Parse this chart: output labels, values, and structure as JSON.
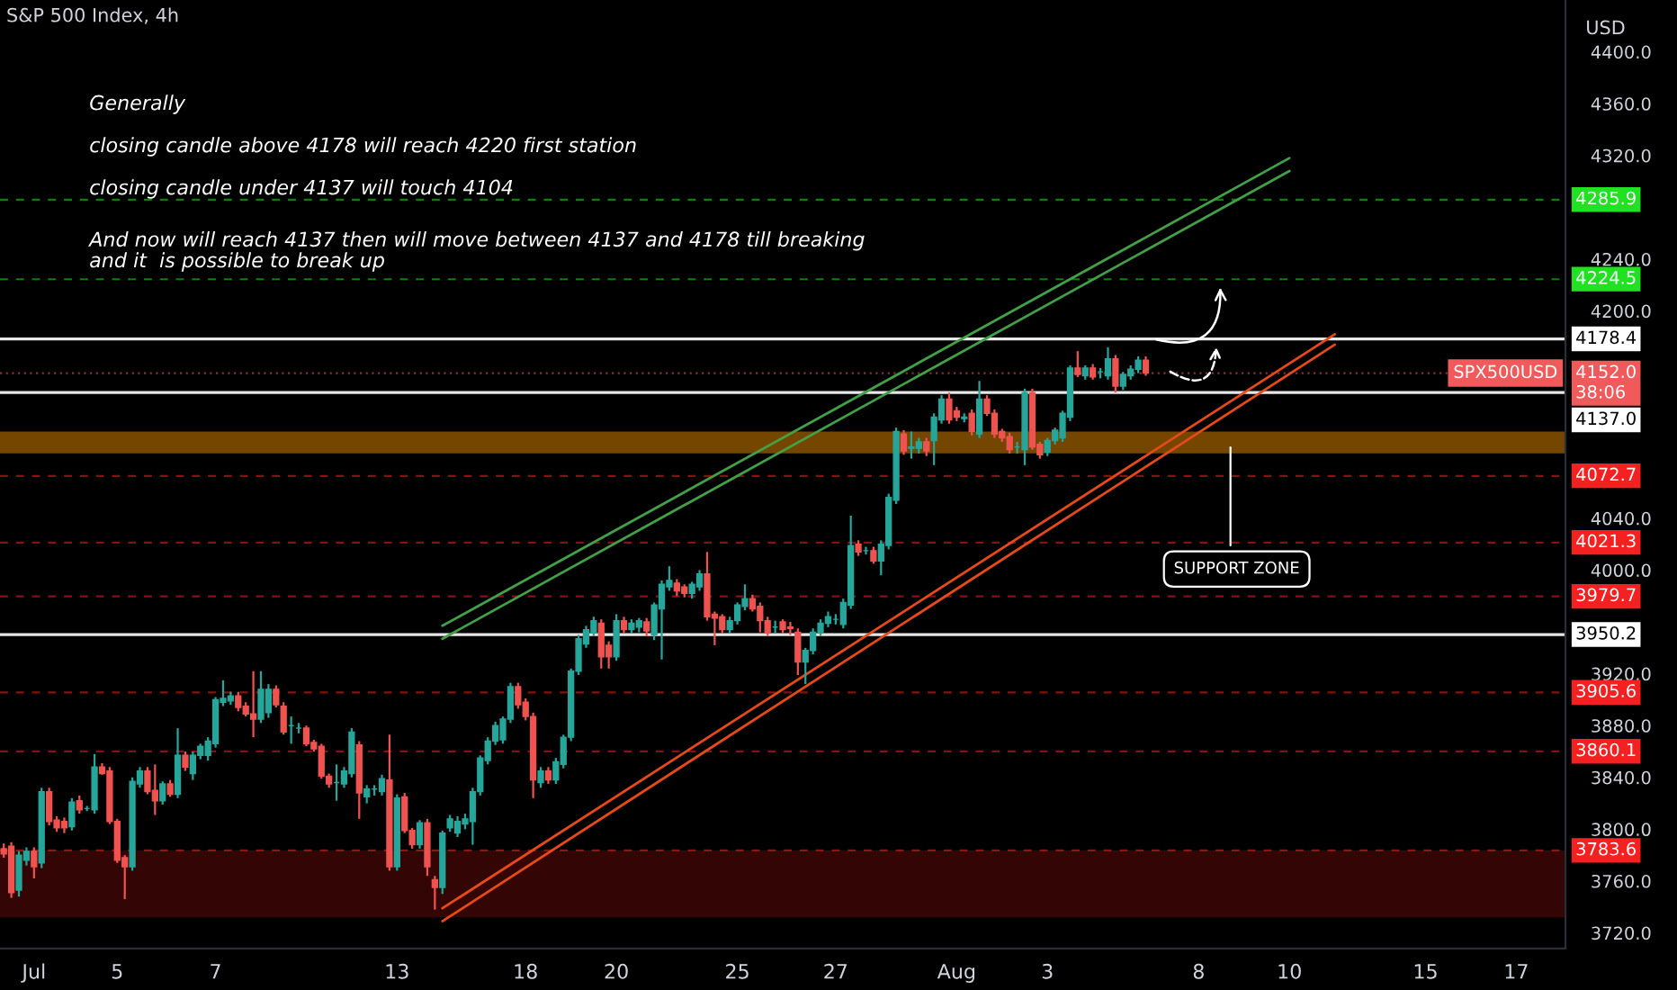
{
  "chart_data": {
    "type": "candlestick",
    "title": "S&P 500 Index, 4h",
    "ylabel": "USD",
    "annotations": [
      "Generally",
      "closing candle above 4178 will reach 4220 first station",
      "closing candle under 4137 will touch 4104",
      "And now will reach 4137 then will move between 4137 and 4178 till breaking\nand it  is possible to break up",
      {
        "text": "SPX500USD",
        "y": 4152.0
      }
    ],
    "categories": [
      null,
      null,
      null,
      null,
      "Jul",
      null,
      null,
      null,
      null,
      null,
      null,
      null,
      null,
      null,
      null,
      "5",
      null,
      null,
      null,
      null,
      null,
      null,
      null,
      null,
      null,
      null,
      null,
      null,
      "7",
      null,
      null,
      null,
      null,
      null,
      null,
      null,
      null,
      null,
      null,
      null,
      null,
      null,
      null,
      null,
      null,
      null,
      null,
      null,
      null,
      null,
      null,
      null,
      "13",
      null,
      null,
      null,
      null,
      null,
      null,
      null,
      null,
      null,
      null,
      null,
      null,
      null,
      null,
      null,
      null,
      "18",
      null,
      null,
      null,
      null,
      null,
      null,
      null,
      null,
      null,
      null,
      null,
      "20",
      null,
      null,
      null,
      null,
      null,
      null,
      null,
      null,
      null,
      null,
      null,
      null,
      null,
      null,
      null,
      "25",
      null,
      null,
      null,
      null,
      null,
      null,
      null,
      null,
      null,
      null,
      null,
      null,
      "27",
      null,
      null,
      null,
      null,
      null,
      null,
      null,
      null,
      null,
      null,
      null,
      null,
      null,
      null,
      null,
      "Aug",
      null,
      null,
      null,
      null,
      null,
      null,
      null,
      null,
      null,
      null,
      null,
      "3",
      null,
      null,
      null,
      null,
      null,
      null,
      null,
      null,
      null,
      null,
      null,
      null,
      null,
      null,
      null,
      null,
      null,
      null,
      null,
      "8",
      null,
      null,
      null,
      null,
      null,
      null,
      null,
      null,
      null,
      null,
      null,
      "10",
      null,
      null,
      null,
      null,
      null,
      null,
      null,
      null,
      null,
      null,
      null,
      null,
      null,
      null,
      null,
      null,
      null,
      "15",
      null,
      null,
      null,
      null,
      null,
      null,
      null,
      null,
      null,
      null,
      null,
      "17",
      null,
      null,
      null,
      null,
      null,
      null
    ],
    "ohlc": [
      [
        3785,
        3789,
        3778,
        3781
      ],
      [
        3787,
        3790,
        3747,
        3751
      ],
      [
        3753,
        3783,
        3748,
        3780
      ],
      [
        3776,
        3786,
        3772,
        3783
      ],
      [
        3783,
        3786,
        3762,
        3771
      ],
      [
        3774,
        3832,
        3770,
        3829
      ],
      [
        3829,
        3832,
        3803,
        3806
      ],
      [
        3807,
        3810,
        3798,
        3801
      ],
      [
        3806,
        3809,
        3797,
        3801
      ],
      [
        3802,
        3824,
        3799,
        3821
      ],
      [
        3822,
        3826,
        3812,
        3815
      ],
      [
        3816,
        3818,
        3814,
        3816
      ],
      [
        3815,
        3858,
        3812,
        3848
      ],
      [
        3848,
        3851,
        3842,
        3843
      ],
      [
        3845,
        3848,
        3804,
        3806
      ],
      [
        3806,
        3808,
        3774,
        3776
      ],
      [
        3778,
        3780,
        3746,
        3771
      ],
      [
        3771,
        3840,
        3768,
        3837
      ],
      [
        3835,
        3848,
        3832,
        3845
      ],
      [
        3845,
        3848,
        3827,
        3829
      ],
      [
        3830,
        3850,
        3811,
        3822
      ],
      [
        3822,
        3837,
        3819,
        3835
      ],
      [
        3835,
        3838,
        3825,
        3827
      ],
      [
        3827,
        3878,
        3824,
        3857
      ],
      [
        3857,
        3860,
        3845,
        3848
      ],
      [
        3843,
        3860,
        3838,
        3857
      ],
      [
        3857,
        3866,
        3854,
        3864
      ],
      [
        3857,
        3871,
        3853,
        3868
      ],
      [
        3866,
        3902,
        3863,
        3900
      ],
      [
        3898,
        3915,
        3895,
        3901
      ],
      [
        3899,
        3906,
        3896,
        3903
      ],
      [
        3903,
        3906,
        3891,
        3894
      ],
      [
        3895,
        3898,
        3887,
        3889
      ],
      [
        3889,
        3922,
        3871,
        3885
      ],
      [
        3885,
        3922,
        3882,
        3908
      ],
      [
        3890,
        3912,
        3886,
        3908
      ],
      [
        3908,
        3911,
        3894,
        3896
      ],
      [
        3895,
        3898,
        3873,
        3875
      ],
      [
        3880,
        3887,
        3866,
        3880
      ],
      [
        3878,
        3882,
        3874,
        3878
      ],
      [
        3878,
        3880,
        3864,
        3866
      ],
      [
        3867,
        3869,
        3860,
        3862
      ],
      [
        3864,
        3866,
        3839,
        3841
      ],
      [
        3841,
        3843,
        3832,
        3835
      ],
      [
        3836,
        3850,
        3822,
        3836
      ],
      [
        3835,
        3848,
        3832,
        3845
      ],
      [
        3843,
        3878,
        3840,
        3875
      ],
      [
        3865,
        3868,
        3808,
        3828
      ],
      [
        3825,
        3834,
        3820,
        3831
      ],
      [
        3831,
        3834,
        3826,
        3831
      ],
      [
        3829,
        3842,
        3826,
        3839
      ],
      [
        3838,
        3873,
        3768,
        3771
      ],
      [
        3771,
        3827,
        3768,
        3824
      ],
      [
        3825,
        3828,
        3797,
        3799
      ],
      [
        3799,
        3801,
        3785,
        3788
      ],
      [
        3788,
        3807,
        3785,
        3805
      ],
      [
        3805,
        3808,
        3764,
        3771
      ],
      [
        3761,
        3764,
        3738,
        3755
      ],
      [
        3755,
        3799,
        3750,
        3797
      ],
      [
        3801,
        3811,
        3798,
        3808
      ],
      [
        3797,
        3810,
        3794,
        3806
      ],
      [
        3804,
        3812,
        3800,
        3808
      ],
      [
        3806,
        3832,
        3788,
        3829
      ],
      [
        3829,
        3857,
        3826,
        3855
      ],
      [
        3853,
        3871,
        3850,
        3868
      ],
      [
        3868,
        3883,
        3865,
        3880
      ],
      [
        3869,
        3887,
        3866,
        3885
      ],
      [
        3885,
        3913,
        3882,
        3910
      ],
      [
        3910,
        3913,
        3893,
        3896
      ],
      [
        3898,
        3901,
        3884,
        3887
      ],
      [
        3887,
        3890,
        3824,
        3838
      ],
      [
        3836,
        3848,
        3832,
        3845
      ],
      [
        3845,
        3848,
        3835,
        3838
      ],
      [
        3838,
        3855,
        3835,
        3852
      ],
      [
        3850,
        3873,
        3847,
        3871
      ],
      [
        3871,
        3924,
        3868,
        3922
      ],
      [
        3922,
        3950,
        3919,
        3947
      ],
      [
        3943,
        3957,
        3940,
        3954
      ],
      [
        3952,
        3964,
        3949,
        3961
      ],
      [
        3959,
        3962,
        3924,
        3933
      ],
      [
        3942,
        3945,
        3924,
        3933
      ],
      [
        3933,
        3966,
        3930,
        3961
      ],
      [
        3961,
        3964,
        3951,
        3954
      ],
      [
        3954,
        3962,
        3951,
        3959
      ],
      [
        3956,
        3963,
        3952,
        3961
      ],
      [
        3960,
        3963,
        3949,
        3953
      ],
      [
        3950,
        3975,
        3946,
        3973
      ],
      [
        3970,
        3992,
        3931,
        3989
      ],
      [
        3987,
        4003,
        3984,
        3992
      ],
      [
        3990,
        3993,
        3980,
        3984
      ],
      [
        3987,
        3989,
        3979,
        3982
      ],
      [
        3982,
        3991,
        3978,
        3989
      ],
      [
        3987,
        4000,
        3984,
        3997
      ],
      [
        3997,
        4014,
        3961,
        3964
      ],
      [
        3966,
        3968,
        3942,
        3963
      ],
      [
        3964,
        3966,
        3951,
        3954
      ],
      [
        3954,
        3964,
        3951,
        3961
      ],
      [
        3961,
        3975,
        3958,
        3973
      ],
      [
        3972,
        3989,
        3969,
        3978
      ],
      [
        3978,
        3981,
        3968,
        3970
      ],
      [
        3972,
        3975,
        3952,
        3961
      ],
      [
        3961,
        3964,
        3949,
        3952
      ],
      [
        3956,
        3961,
        3951,
        3956
      ],
      [
        3960,
        3962,
        3951,
        3954
      ],
      [
        3956,
        3960,
        3950,
        3955
      ],
      [
        3952,
        3955,
        3919,
        3929
      ],
      [
        3929,
        3940,
        3912,
        3938
      ],
      [
        3938,
        3955,
        3935,
        3952
      ],
      [
        3952,
        3962,
        3949,
        3959
      ],
      [
        3959,
        3968,
        3956,
        3964
      ],
      [
        3962,
        3966,
        3958,
        3962
      ],
      [
        3958,
        3978,
        3955,
        3975
      ],
      [
        3973,
        4042,
        3970,
        4019
      ],
      [
        4020,
        4023,
        4011,
        4014
      ],
      [
        4015,
        4018,
        4012,
        4015
      ],
      [
        4015,
        4018,
        4005,
        4007
      ],
      [
        4007,
        4023,
        3996,
        4020
      ],
      [
        4019,
        4059,
        4016,
        4056
      ],
      [
        4054,
        4110,
        4051,
        4107
      ],
      [
        4105,
        4108,
        4089,
        4092
      ],
      [
        4094,
        4107,
        4086,
        4095
      ],
      [
        4094,
        4102,
        4090,
        4099
      ],
      [
        4099,
        4102,
        4088,
        4092
      ],
      [
        4100,
        4121,
        4081,
        4118
      ],
      [
        4116,
        4135,
        4113,
        4132
      ],
      [
        4132,
        4137,
        4113,
        4116
      ],
      [
        4123,
        4126,
        4115,
        4118
      ],
      [
        4117,
        4121,
        4114,
        4118
      ],
      [
        4121,
        4124,
        4104,
        4107
      ],
      [
        4105,
        4146,
        4102,
        4132
      ],
      [
        4132,
        4135,
        4119,
        4121
      ],
      [
        4121,
        4124,
        4102,
        4105
      ],
      [
        4107,
        4109,
        4099,
        4102
      ],
      [
        4103,
        4106,
        4090,
        4093
      ],
      [
        4095,
        4099,
        4090,
        4095
      ],
      [
        4093,
        4140,
        4081,
        4137
      ],
      [
        4137,
        4140,
        4093,
        4095
      ],
      [
        4097,
        4099,
        4086,
        4089
      ],
      [
        4091,
        4102,
        4088,
        4100
      ],
      [
        4100,
        4110,
        4097,
        4108
      ],
      [
        4102,
        4123,
        4099,
        4121
      ],
      [
        4118,
        4158,
        4115,
        4156
      ],
      [
        4156,
        4169,
        4149,
        4151
      ],
      [
        4150,
        4158,
        4147,
        4156
      ],
      [
        4156,
        4159,
        4147,
        4149
      ],
      [
        4153,
        4156,
        4148,
        4153
      ],
      [
        4150,
        4172,
        4147,
        4163
      ],
      [
        4163,
        4166,
        4137,
        4142
      ],
      [
        4142,
        4153,
        4139,
        4151
      ],
      [
        4150,
        4158,
        4147,
        4155
      ],
      [
        4155,
        4165,
        4152,
        4162
      ],
      [
        4162,
        4165,
        4150,
        4152
      ],
      null,
      null,
      null,
      null,
      null,
      null,
      null,
      null,
      null,
      null,
      null,
      null,
      null,
      null,
      null,
      null,
      null,
      null,
      null,
      null,
      null,
      null,
      null,
      null,
      null,
      null,
      null,
      null,
      null,
      null,
      null,
      null,
      null,
      null,
      null,
      null,
      null,
      null,
      null,
      null,
      null,
      null,
      null,
      null,
      null,
      null,
      null,
      null,
      null,
      null,
      null,
      null,
      null,
      null,
      null
    ],
    "series": [
      {
        "type": "line",
        "color": "#43a047",
        "values": [
          null,
          null,
          null,
          null,
          null,
          null,
          null,
          null,
          null,
          null,
          null,
          null,
          null,
          null,
          null,
          null,
          null,
          null,
          null,
          null,
          null,
          null,
          null,
          null,
          null,
          null,
          null,
          null,
          null,
          null,
          null,
          null,
          null,
          null,
          null,
          null,
          null,
          null,
          null,
          null,
          null,
          null,
          null,
          null,
          null,
          null,
          null,
          null,
          null,
          null,
          null,
          null,
          null,
          null,
          null,
          null,
          null,
          null,
          3957,
          null,
          null,
          null,
          null,
          null,
          null,
          null,
          null,
          null,
          null,
          null,
          null,
          null,
          null,
          null,
          null,
          null,
          null,
          null,
          null,
          null,
          null,
          null,
          null,
          null,
          null,
          null,
          null,
          null,
          null,
          null,
          null,
          null,
          null,
          null,
          null,
          null,
          null,
          null,
          null,
          null,
          null,
          null,
          null,
          null,
          null,
          null,
          null,
          null,
          null,
          null,
          null,
          null,
          null,
          null,
          null,
          null,
          null,
          null,
          null,
          null,
          null,
          null,
          null,
          null,
          null,
          null,
          null,
          null,
          null,
          null,
          null,
          null,
          null,
          null,
          null,
          null,
          null,
          null,
          null,
          null,
          null,
          null,
          null,
          null,
          null,
          null,
          null,
          null,
          null,
          null,
          null,
          null,
          null,
          null,
          null,
          null,
          null,
          null,
          null,
          null,
          null,
          null,
          null,
          null,
          null,
          null,
          null,
          null,
          null,
          null,
          4318,
          null,
          null,
          null,
          null,
          null,
          null,
          null,
          null,
          null,
          null,
          null,
          null,
          null,
          null,
          null,
          null,
          null,
          null,
          null,
          null,
          null,
          null,
          null,
          null,
          null,
          null,
          null,
          null,
          null,
          null,
          null,
          null,
          null,
          null,
          null,
          null
        ]
      },
      {
        "type": "line",
        "color": "#43a047",
        "values": [
          null,
          null,
          null,
          null,
          null,
          null,
          null,
          null,
          null,
          null,
          null,
          null,
          null,
          null,
          null,
          null,
          null,
          null,
          null,
          null,
          null,
          null,
          null,
          null,
          null,
          null,
          null,
          null,
          null,
          null,
          null,
          null,
          null,
          null,
          null,
          null,
          null,
          null,
          null,
          null,
          null,
          null,
          null,
          null,
          null,
          null,
          null,
          null,
          null,
          null,
          null,
          null,
          null,
          null,
          null,
          null,
          null,
          null,
          3947,
          null,
          null,
          null,
          null,
          null,
          null,
          null,
          null,
          null,
          null,
          null,
          null,
          null,
          null,
          null,
          null,
          null,
          null,
          null,
          null,
          null,
          null,
          null,
          null,
          null,
          null,
          null,
          null,
          null,
          null,
          null,
          null,
          null,
          null,
          null,
          null,
          null,
          null,
          null,
          null,
          null,
          null,
          null,
          null,
          null,
          null,
          null,
          null,
          null,
          null,
          null,
          null,
          null,
          null,
          null,
          null,
          null,
          null,
          null,
          null,
          null,
          null,
          null,
          null,
          null,
          null,
          null,
          null,
          null,
          null,
          null,
          null,
          null,
          null,
          null,
          null,
          null,
          null,
          null,
          null,
          null,
          null,
          null,
          null,
          null,
          null,
          null,
          null,
          null,
          null,
          null,
          null,
          null,
          null,
          null,
          null,
          null,
          null,
          null,
          null,
          null,
          null,
          null,
          null,
          null,
          null,
          null,
          null,
          null,
          null,
          null,
          4308,
          null,
          null,
          null,
          null,
          null,
          null,
          null,
          null,
          null,
          null,
          null,
          null,
          null,
          null,
          null,
          null,
          null,
          null,
          null,
          null,
          null,
          null,
          null,
          null,
          null,
          null,
          null,
          null,
          null,
          null,
          null,
          null,
          null,
          null,
          null,
          null
        ]
      },
      {
        "type": "line",
        "color": "#e64a19",
        "values": [
          null,
          null,
          null,
          null,
          null,
          null,
          null,
          null,
          null,
          null,
          null,
          null,
          null,
          null,
          null,
          null,
          null,
          null,
          null,
          null,
          null,
          null,
          null,
          null,
          null,
          null,
          null,
          null,
          null,
          null,
          null,
          null,
          null,
          null,
          null,
          null,
          null,
          null,
          null,
          null,
          null,
          null,
          null,
          null,
          null,
          null,
          null,
          null,
          null,
          null,
          null,
          null,
          null,
          null,
          null,
          null,
          null,
          null,
          3739,
          null,
          null,
          null,
          null,
          null,
          null,
          null,
          null,
          null,
          null,
          null,
          null,
          null,
          null,
          null,
          null,
          null,
          null,
          null,
          null,
          null,
          null,
          null,
          null,
          null,
          null,
          null,
          null,
          null,
          null,
          null,
          null,
          null,
          null,
          null,
          null,
          null,
          null,
          null,
          null,
          null,
          null,
          null,
          null,
          null,
          null,
          null,
          null,
          null,
          null,
          null,
          null,
          null,
          null,
          null,
          null,
          null,
          null,
          null,
          null,
          null,
          null,
          null,
          null,
          null,
          null,
          null,
          null,
          null,
          null,
          null,
          null,
          null,
          null,
          null,
          null,
          null,
          null,
          null,
          null,
          null,
          null,
          null,
          null,
          null,
          null,
          null,
          null,
          null,
          null,
          null,
          null,
          null,
          null,
          null,
          null,
          null,
          null,
          null,
          null,
          null,
          null,
          null,
          null,
          null,
          null,
          null,
          null,
          null,
          null,
          null,
          null,
          null,
          null,
          null,
          null,
          null,
          4182,
          null,
          null,
          null,
          null,
          null,
          null,
          null,
          null,
          null,
          null,
          null,
          null,
          null,
          null,
          null,
          null,
          null,
          null,
          null,
          null,
          null,
          null,
          null,
          null,
          null,
          null,
          null,
          null,
          null,
          null
        ]
      },
      {
        "type": "line",
        "color": "#e64a19",
        "values": [
          null,
          null,
          null,
          null,
          null,
          null,
          null,
          null,
          null,
          null,
          null,
          null,
          null,
          null,
          null,
          null,
          null,
          null,
          null,
          null,
          null,
          null,
          null,
          null,
          null,
          null,
          null,
          null,
          null,
          null,
          null,
          null,
          null,
          null,
          null,
          null,
          null,
          null,
          null,
          null,
          null,
          null,
          null,
          null,
          null,
          null,
          null,
          null,
          null,
          null,
          null,
          null,
          null,
          null,
          null,
          null,
          null,
          null,
          3729,
          null,
          null,
          null,
          null,
          null,
          null,
          null,
          null,
          null,
          null,
          null,
          null,
          null,
          null,
          null,
          null,
          null,
          null,
          null,
          null,
          null,
          null,
          null,
          null,
          null,
          null,
          null,
          null,
          null,
          null,
          null,
          null,
          null,
          null,
          null,
          null,
          null,
          null,
          null,
          null,
          null,
          null,
          null,
          null,
          null,
          null,
          null,
          null,
          null,
          null,
          null,
          null,
          null,
          null,
          null,
          null,
          null,
          null,
          null,
          null,
          null,
          null,
          null,
          null,
          null,
          null,
          null,
          null,
          null,
          null,
          null,
          null,
          null,
          null,
          null,
          null,
          null,
          null,
          null,
          null,
          null,
          null,
          null,
          null,
          null,
          null,
          null,
          null,
          null,
          null,
          null,
          null,
          null,
          null,
          null,
          null,
          null,
          null,
          null,
          null,
          null,
          null,
          null,
          null,
          null,
          null,
          null,
          null,
          null,
          null,
          null,
          null,
          null,
          null,
          null,
          null,
          null,
          4174,
          null,
          null,
          null,
          null,
          null,
          null,
          null,
          null,
          null,
          null,
          null,
          null,
          null,
          null,
          null,
          null,
          null,
          null,
          null,
          null,
          null,
          null,
          null,
          null,
          null,
          null,
          null,
          null,
          null,
          null
        ]
      }
    ],
    "ref_lines": [
      {
        "axis": "y",
        "value": 4285.9,
        "label": "4285.9",
        "color": "#22e022",
        "line_style": "dashed"
      },
      {
        "axis": "y",
        "value": 4224.5,
        "label": "4224.5",
        "color": "#22e022",
        "line_style": "dashed"
      },
      {
        "axis": "y",
        "value": 4178.4,
        "label": "4178.4",
        "color": "#ffffff",
        "line_style": "solid"
      },
      {
        "axis": "y",
        "value": 4152.0,
        "label": "4152.0\n38:06",
        "color": "#f05a5a",
        "line_style": "dotted"
      },
      {
        "axis": "y",
        "value": 4137.0,
        "label": "4137.0",
        "color": "#ffffff",
        "line_style": "solid"
      },
      {
        "axis": "y",
        "value": 4072.7,
        "label": "4072.7",
        "color": "#f52020",
        "line_style": "dashed"
      },
      {
        "axis": "y",
        "value": 4021.3,
        "label": "4021.3",
        "color": "#f52020",
        "line_style": "dashed"
      },
      {
        "axis": "y",
        "value": 3979.7,
        "label": "3979.7",
        "color": "#f52020",
        "line_style": "dashed"
      },
      {
        "axis": "y",
        "value": 3950.2,
        "label": "3950.2",
        "color": "#ffffff",
        "line_style": "solid"
      },
      {
        "axis": "y",
        "value": 3905.6,
        "label": "3905.6",
        "color": "#f52020",
        "line_style": "dashed"
      },
      {
        "axis": "y",
        "value": 3860.1,
        "label": "3860.1",
        "color": "#f52020",
        "line_style": "dashed"
      },
      {
        "axis": "y",
        "value": 3783.6,
        "label": "3783.6",
        "color": "#f52020",
        "line_style": "dashed"
      }
    ],
    "bands": [
      {
        "axis": "y",
        "from": 3732,
        "to": 3783.6,
        "color": "#3d0606"
      },
      {
        "axis": "y",
        "from": 4090,
        "to": 4107,
        "color": "#8a5200",
        "label": "SUPPORT ZONE"
      }
    ],
    "ylim": [
      3708,
      4440
    ],
    "yticks": [
      {
        "value": 3720,
        "label": "3720.0"
      },
      {
        "value": 3760,
        "label": "3760.0"
      },
      {
        "value": 3800,
        "label": "3800.0"
      },
      {
        "value": 3840,
        "label": "3840.0"
      },
      {
        "value": 3880,
        "label": "3880.0"
      },
      {
        "value": 3920,
        "label": "3920.0"
      },
      {
        "value": 4000,
        "label": "4000.0"
      },
      {
        "value": 4040,
        "label": "4040.0"
      },
      {
        "value": 4200,
        "label": "4200.0"
      },
      {
        "value": 4240,
        "label": "4240.0"
      },
      {
        "value": 4320,
        "label": "4320.0"
      },
      {
        "value": 4360,
        "label": "4360.0"
      },
      {
        "value": 4400,
        "label": "4400.0"
      }
    ],
    "grid": false
  }
}
